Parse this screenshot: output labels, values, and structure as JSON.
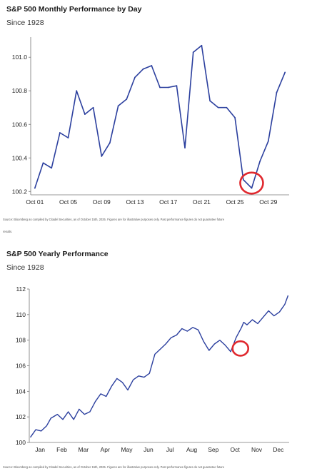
{
  "chart_data": [
    {
      "type": "line",
      "title": "S&P 500 Monthly Performance by Day",
      "subtitle": "Since 1928",
      "xlabel": "",
      "ylabel": "",
      "x_tick_labels": [
        "Oct 01",
        "Oct 05",
        "Oct 09",
        "Oct 13",
        "Oct 17",
        "Oct 21",
        "Oct 25",
        "Oct 29"
      ],
      "y_ticks": [
        100.2,
        100.4,
        100.6,
        100.8,
        101.0
      ],
      "y_tick_labels": [
        "100.2",
        "100.4",
        "100.6",
        "100.8",
        "101.0"
      ],
      "ylim": [
        100.18,
        101.12
      ],
      "xlim": [
        0.5,
        31.5
      ],
      "series": [
        {
          "color": "#2b3f9e",
          "x": [
            1,
            2,
            3,
            4,
            5,
            6,
            7,
            8,
            9,
            10,
            11,
            12,
            13,
            14,
            15,
            16,
            17,
            18,
            19,
            20,
            21,
            22,
            23,
            24,
            25,
            26,
            27,
            28,
            29,
            30,
            31
          ],
          "values": [
            100.22,
            100.37,
            100.34,
            100.55,
            100.52,
            100.8,
            100.66,
            100.7,
            100.41,
            100.49,
            100.71,
            100.75,
            100.88,
            100.93,
            100.95,
            100.82,
            100.82,
            100.83,
            100.46,
            101.03,
            101.07,
            100.74,
            100.7,
            100.7,
            100.64,
            100.27,
            100.22,
            100.38,
            100.5,
            100.79,
            100.91
          ]
        }
      ],
      "highlight": {
        "x": 27,
        "y": 100.25,
        "color": "#e0282e"
      },
      "grid": false,
      "source": "Source: Bloomberg as compiled by Citadel Securities, as of October 15th, 2025. Figures are for illustrative purposes only. Past performance figures do not guarantee future",
      "source_cont": "results."
    },
    {
      "type": "line",
      "title": "S&P 500 Yearly Performance",
      "subtitle": "Since 1928",
      "xlabel": "",
      "ylabel": "",
      "x_tick_labels": [
        "Jan",
        "Feb",
        "Mar",
        "Apr",
        "May",
        "Jun",
        "Jul",
        "Aug",
        "Sep",
        "Oct",
        "Nov",
        "Dec"
      ],
      "y_ticks": [
        100,
        102,
        104,
        106,
        108,
        110,
        112
      ],
      "y_tick_labels": [
        "100",
        "102",
        "104",
        "106",
        "108",
        "110",
        "112"
      ],
      "ylim": [
        100,
        112
      ],
      "xlim": [
        0,
        12
      ],
      "series": [
        {
          "color": "#2b3f9e",
          "x": [
            0.05,
            0.3,
            0.55,
            0.8,
            1.0,
            1.3,
            1.55,
            1.8,
            2.05,
            2.3,
            2.55,
            2.8,
            3.05,
            3.3,
            3.55,
            3.8,
            4.05,
            4.3,
            4.55,
            4.8,
            5.05,
            5.3,
            5.55,
            5.8,
            6.05,
            6.3,
            6.55,
            6.8,
            7.05,
            7.3,
            7.55,
            7.8,
            8.05,
            8.3,
            8.55,
            8.8,
            9.05,
            9.3,
            9.55,
            9.8,
            9.9,
            10.05,
            10.3,
            10.55,
            10.8,
            11.05,
            11.3,
            11.55,
            11.8,
            11.95
          ],
          "values": [
            100.4,
            101.0,
            100.9,
            101.3,
            101.9,
            102.2,
            101.8,
            102.4,
            101.8,
            102.6,
            102.2,
            102.4,
            103.2,
            103.8,
            103.6,
            104.4,
            105.0,
            104.7,
            104.1,
            104.9,
            105.2,
            105.1,
            105.4,
            106.9,
            107.3,
            107.7,
            108.2,
            108.4,
            108.9,
            108.7,
            109.0,
            108.8,
            107.9,
            107.2,
            107.7,
            108.0,
            107.6,
            107.1,
            108.2,
            109.0,
            109.4,
            109.2,
            109.6,
            109.3,
            109.8,
            110.3,
            109.9,
            110.2,
            110.8,
            111.5
          ]
        }
      ],
      "highlight": {
        "x": 9.75,
        "y": 107.35,
        "color": "#e0282e"
      },
      "grid": false,
      "source": "Source: Bloomberg as compiled by Citadel Securities, as of October 15th, 2025. Figures are for illustrative purposes only. Past performance figures do not guarantee future"
    }
  ]
}
